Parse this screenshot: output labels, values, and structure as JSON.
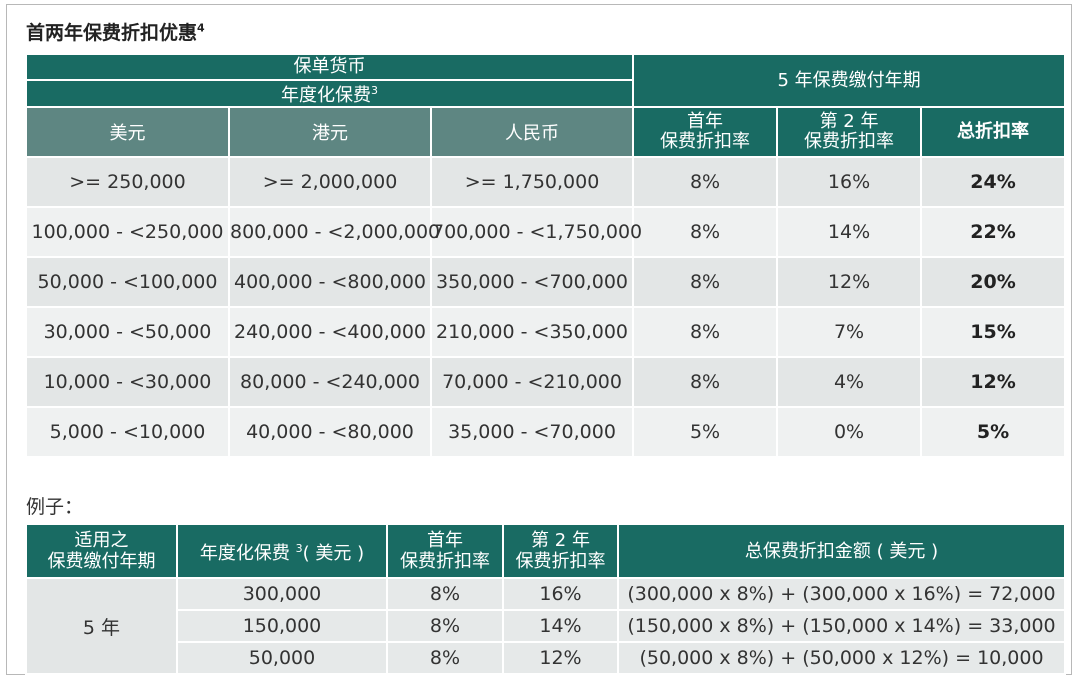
{
  "title": {
    "text": "首两年保费折扣优惠",
    "footnote": "4"
  },
  "main_table": {
    "currency_header": "保单货币",
    "premium_header": "年度化保费",
    "premium_footnote": "3",
    "period_header": "5 年保费缴付年期",
    "currency_columns": [
      "美元",
      "港元",
      "人民币"
    ],
    "first_year_header_line1": "首年",
    "first_year_header_line2": "保费折扣率",
    "second_year_header_line1": "第 2 年",
    "second_year_header_line2": "保费折扣率",
    "total_header": "总折扣率",
    "rows": [
      {
        "usd": ">= 250,000",
        "hkd": ">= 2,000,000",
        "rmb": ">= 1,750,000",
        "y1": "8%",
        "y2": "16%",
        "total": "24%"
      },
      {
        "usd": "100,000 - <250,000",
        "hkd": "800,000 - <2,000,000",
        "rmb": "700,000 - <1,750,000",
        "y1": "8%",
        "y2": "14%",
        "total": "22%"
      },
      {
        "usd": "50,000 - <100,000",
        "hkd": "400,000 - <800,000",
        "rmb": "350,000 - <700,000",
        "y1": "8%",
        "y2": "12%",
        "total": "20%"
      },
      {
        "usd": "30,000 - <50,000",
        "hkd": "240,000 - <400,000",
        "rmb": "210,000 - <350,000",
        "y1": "8%",
        "y2": "7%",
        "total": "15%"
      },
      {
        "usd": "10,000 - <30,000",
        "hkd": "80,000 - <240,000",
        "rmb": "70,000 - <210,000",
        "y1": "8%",
        "y2": "4%",
        "total": "12%"
      },
      {
        "usd": "5,000 - <10,000",
        "hkd": "40,000 - <80,000",
        "rmb": "35,000 - <70,000",
        "y1": "5%",
        "y2": "0%",
        "total": "5%"
      }
    ]
  },
  "example": {
    "label": "例子：",
    "headers": {
      "period_line1": "适用之",
      "period_line2": "保费缴付年期",
      "premium_prefix": "年度化保费 ",
      "premium_footnote": "3",
      "premium_suffix": "( 美元 )",
      "y1_line1": "首年",
      "y1_line2": "保费折扣率",
      "y2_line1": "第 2 年",
      "y2_line2": "保费折扣率",
      "total": "总保费折扣金额 ( 美元 )"
    },
    "period_value": "5 年",
    "rows": [
      {
        "premium": "300,000",
        "y1": "8%",
        "y2": "16%",
        "calc": "(300,000 x 8%) + (300,000 x 16%) = 72,000"
      },
      {
        "premium": "150,000",
        "y1": "8%",
        "y2": "14%",
        "calc": "(150,000 x 8%) + (150,000 x 14%) = 33,000"
      },
      {
        "premium": "50,000",
        "y1": "8%",
        "y2": "12%",
        "calc": "(50,000 x 8%) + (50,000 x 12%) = 10,000"
      }
    ]
  },
  "colors": {
    "header_dark": "#196b63",
    "header_mid": "#5e8682",
    "row_a": "#e3e6e6",
    "row_b": "#eff1f1"
  }
}
